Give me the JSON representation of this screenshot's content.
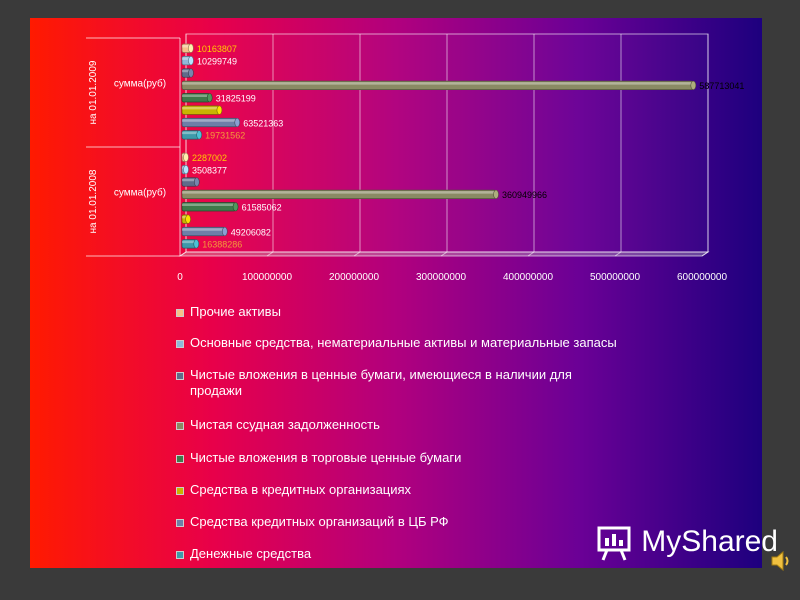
{
  "chart_data": {
    "type": "bar",
    "orientation": "horizontal",
    "groups": [
      {
        "outer_label": "на 01.01.2009",
        "inner_label": "сумма(руб)"
      },
      {
        "outer_label": "на 01.01.2008",
        "inner_label": "сумма(руб)"
      }
    ],
    "series": [
      {
        "name": "Прочие активы",
        "color": "#f6c08a",
        "values": [
          10163807,
          2287002
        ],
        "label_color": "#ffcc00"
      },
      {
        "name": "Основные средства, нематериальные активы и материальные запасы",
        "color": "#8fb8d8",
        "values": [
          10299749,
          3508377
        ],
        "label_color": "#ffffff"
      },
      {
        "name": "Чистые вложения в ценные бумаги, имеющиеся в наличии для продажи",
        "color": "#5f6b8a",
        "values": [
          10299749,
          17000000
        ],
        "label_color": null
      },
      {
        "name": "Чистая ссудная задолженность",
        "color": "#8a8a64",
        "values": [
          587713041,
          360949966
        ],
        "label_color": "#000000"
      },
      {
        "name": "Чистые вложения в торговые ценные бумаги",
        "color": "#3f7a4a",
        "values": [
          31825199,
          61585062
        ],
        "label_color": "#ffffff"
      },
      {
        "name": "Средства в кредитных организациях",
        "color": "#c8b400",
        "values": [
          43000000,
          7000000
        ],
        "label_color": null
      },
      {
        "name": "Средства кредитных организаций в ЦБ РФ",
        "color": "#6e7fa8",
        "values": [
          63521363,
          49206082
        ],
        "label_color": "#ffffff"
      },
      {
        "name": "Денежные средства",
        "color": "#3d9aaa",
        "values": [
          19731562,
          16388286
        ],
        "label_color": "#f39a3a"
      }
    ],
    "data_labels": {
      "g0": [
        "10163807",
        "10299749",
        "",
        "587713041",
        "31825199",
        "",
        "63521363",
        "19731562"
      ],
      "g1": [
        "2287002",
        "3508377",
        "",
        "360949966",
        "61585062",
        "",
        "49206082",
        "16388286"
      ]
    },
    "x_ticks": [
      "0",
      "100000000",
      "200000000",
      "300000000",
      "400000000",
      "500000000",
      "600000000"
    ],
    "xlim": [
      0,
      600000000
    ],
    "grid": true,
    "legend_position": "bottom"
  },
  "brand": {
    "text": "MyShared"
  }
}
